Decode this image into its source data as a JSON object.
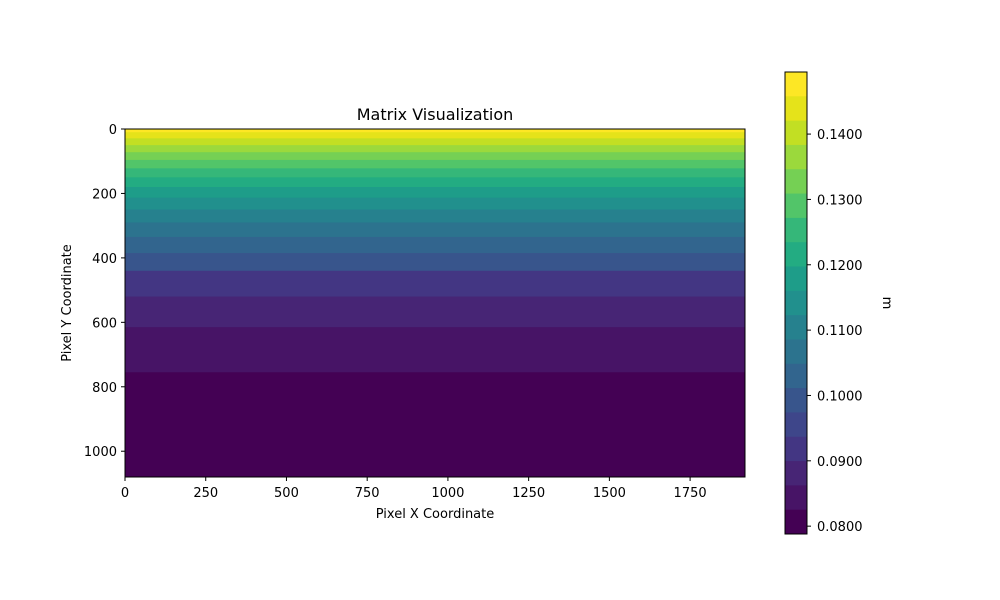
{
  "chart_data": {
    "type": "heatmap",
    "title": "Matrix Visualization",
    "xlabel": "Pixel X Coordinate",
    "ylabel": "Pixel Y Coordinate",
    "colorbar_label": "m",
    "colormap": "viridis",
    "xlim": [
      0,
      1920
    ],
    "ylim": [
      1080,
      0
    ],
    "x_ticks": [
      0,
      250,
      500,
      750,
      1000,
      1250,
      1500,
      1750
    ],
    "x_tick_labels": [
      "0",
      "250",
      "500",
      "750",
      "1000",
      "1250",
      "1500",
      "1750"
    ],
    "y_ticks": [
      0,
      200,
      400,
      600,
      800,
      1000
    ],
    "y_tick_labels": [
      "0",
      "200",
      "400",
      "600",
      "800",
      "1000"
    ],
    "colorbar_range": [
      0.0788,
      0.1495
    ],
    "colorbar_ticks": [
      0.08,
      0.09,
      0.1,
      0.11,
      0.12,
      0.13,
      0.14
    ],
    "colorbar_tick_labels": [
      "0.0800",
      "0.0900",
      "0.1000",
      "0.1100",
      "0.1200",
      "0.1300",
      "0.1400"
    ],
    "level_colors": [
      "#440154",
      "#471466",
      "#472575",
      "#433683",
      "#3e468a",
      "#38558c",
      "#32658e",
      "#2c738e",
      "#26818e",
      "#21908d",
      "#1e9d89",
      "#23ac82",
      "#35b779",
      "#52c569",
      "#75d054",
      "#9bd93c",
      "#c2df23",
      "#e5e31a",
      "#fde725"
    ],
    "bands": [
      {
        "y_start": 0,
        "y_end": 10,
        "value": 0.1495
      },
      {
        "y_start": 10,
        "y_end": 29,
        "value": 0.1455
      },
      {
        "y_start": 29,
        "y_end": 50,
        "value": 0.1415
      },
      {
        "y_start": 50,
        "y_end": 72,
        "value": 0.1375
      },
      {
        "y_start": 72,
        "y_end": 96,
        "value": 0.1335
      },
      {
        "y_start": 96,
        "y_end": 122,
        "value": 0.1295
      },
      {
        "y_start": 122,
        "y_end": 150,
        "value": 0.1255
      },
      {
        "y_start": 150,
        "y_end": 180,
        "value": 0.1215
      },
      {
        "y_start": 180,
        "y_end": 213,
        "value": 0.1175
      },
      {
        "y_start": 213,
        "y_end": 250,
        "value": 0.1135
      },
      {
        "y_start": 250,
        "y_end": 290,
        "value": 0.1095
      },
      {
        "y_start": 290,
        "y_end": 335,
        "value": 0.1055
      },
      {
        "y_start": 335,
        "y_end": 385,
        "value": 0.1015
      },
      {
        "y_start": 385,
        "y_end": 440,
        "value": 0.0975
      },
      {
        "y_start": 440,
        "y_end": 520,
        "value": 0.0935
      },
      {
        "y_start": 520,
        "y_end": 615,
        "value": 0.0895
      },
      {
        "y_start": 615,
        "y_end": 755,
        "value": 0.0855
      },
      {
        "y_start": 755,
        "y_end": 1080,
        "value": 0.08
      }
    ]
  }
}
